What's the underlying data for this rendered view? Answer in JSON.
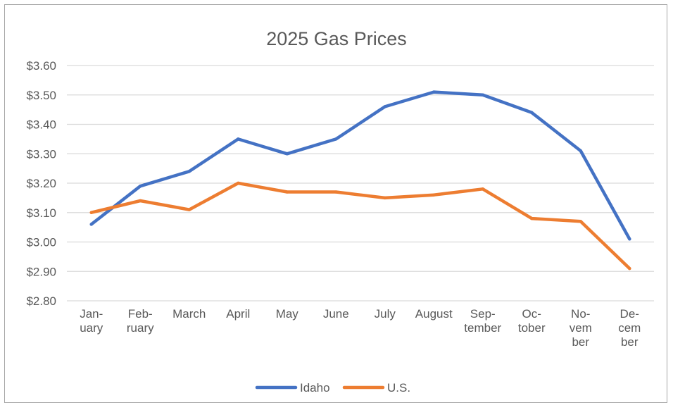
{
  "chart_data": {
    "type": "line",
    "title": "2025 Gas Prices",
    "xlabel": "",
    "ylabel": "",
    "categories": [
      "January",
      "February",
      "March",
      "April",
      "May",
      "June",
      "July",
      "August",
      "September",
      "October",
      "November",
      "December"
    ],
    "category_labels": [
      [
        "Jan-",
        "uary"
      ],
      [
        "Feb-",
        "ruary"
      ],
      [
        "March"
      ],
      [
        "April"
      ],
      [
        "May"
      ],
      [
        "June"
      ],
      [
        "July"
      ],
      [
        "August"
      ],
      [
        "Sep-",
        "tember"
      ],
      [
        "Oc-",
        "tober"
      ],
      [
        "No-",
        "vem",
        "ber"
      ],
      [
        "De-",
        "cem",
        "ber"
      ]
    ],
    "ylim": [
      2.8,
      3.6
    ],
    "yticks": [
      2.8,
      2.9,
      3.0,
      3.1,
      3.2,
      3.3,
      3.4,
      3.5,
      3.6
    ],
    "ytick_labels": [
      "$2.80",
      "$2.90",
      "$3.00",
      "$3.10",
      "$3.20",
      "$3.30",
      "$3.40",
      "$3.50",
      "$3.60"
    ],
    "grid": true,
    "legend_position": "bottom",
    "series": [
      {
        "name": "Idaho",
        "color": "#4472c4",
        "values": [
          3.06,
          3.19,
          3.24,
          3.35,
          3.3,
          3.35,
          3.46,
          3.51,
          3.5,
          3.44,
          3.31,
          3.01
        ]
      },
      {
        "name": "U.S.",
        "color": "#ed7d31",
        "values": [
          3.1,
          3.14,
          3.11,
          3.2,
          3.17,
          3.17,
          3.15,
          3.16,
          3.18,
          3.08,
          3.07,
          2.91
        ]
      }
    ]
  }
}
